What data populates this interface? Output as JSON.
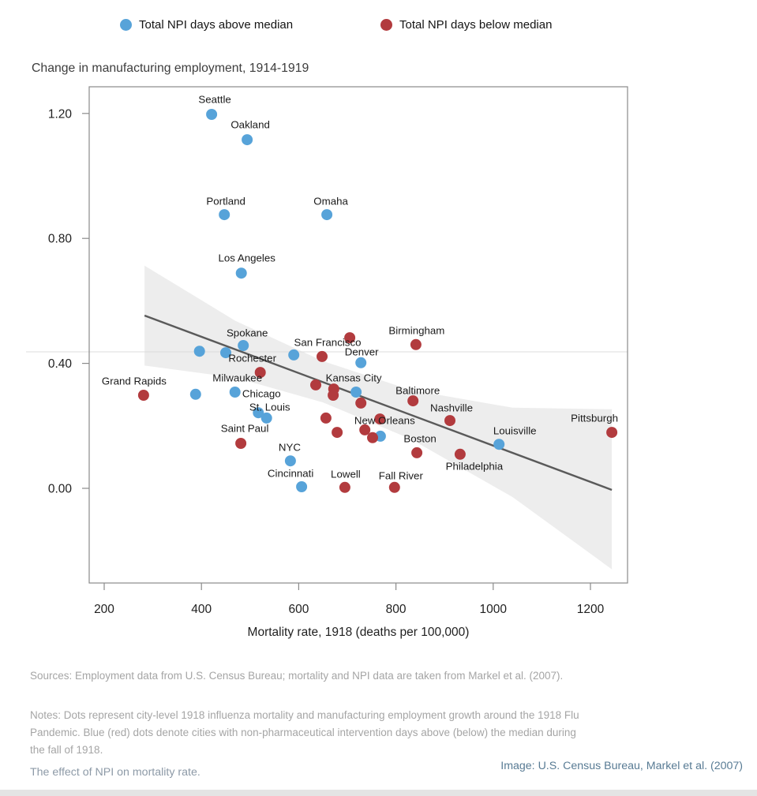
{
  "legend": {
    "above": "Total NPI days above median",
    "below": "Total NPI days below median"
  },
  "title": "Change in manufacturing employment, 1914-1919",
  "colors": {
    "above": "#57a3d9",
    "below": "#b23b3e",
    "trend": "#5a5a5a",
    "band": "rgba(130,130,130,0.14)",
    "refline": "#dcdcdc",
    "axis": "#8a8a8a",
    "tick_text": "#1f1f1f",
    "city_text": "#1a1a1a"
  },
  "chart_data": {
    "type": "scatter",
    "title": "Change in manufacturing employment, 1914-1919",
    "xlabel": "Mortality rate, 1918 (deaths per 100,000)",
    "ylabel": "Change in manufacturing employment, 1914-1919",
    "x_ticks": [
      200,
      400,
      600,
      800,
      1000,
      1200
    ],
    "y_ticks": [
      0.0,
      0.4,
      0.8,
      1.2
    ],
    "x_range": [
      169,
      1276
    ],
    "y_range": [
      -0.31,
      1.29
    ],
    "grid": "off",
    "legend_position": "top",
    "reference_line_y": 0.437,
    "trend_line": {
      "x1": 283,
      "y1": 0.553,
      "x2": 1244,
      "y2": -0.005
    },
    "confidence_band": {
      "top": [
        [
          283,
          0.713
        ],
        [
          470,
          0.536
        ],
        [
          650,
          0.407
        ],
        [
          830,
          0.315
        ],
        [
          1040,
          0.258
        ],
        [
          1244,
          0.253
        ]
      ],
      "bottom": [
        [
          283,
          0.393
        ],
        [
          470,
          0.354
        ],
        [
          650,
          0.275
        ],
        [
          830,
          0.158
        ],
        [
          1040,
          -0.028
        ],
        [
          1244,
          -0.259
        ]
      ]
    },
    "series": [
      {
        "name": "Total NPI days above median",
        "color_key": "above",
        "points": [
          {
            "city": "Seattle",
            "x": 421,
            "y": 1.197,
            "dx": 4,
            "dy": -19
          },
          {
            "city": "Oakland",
            "x": 494,
            "y": 1.116,
            "dx": 4,
            "dy": -19
          },
          {
            "city": "Portland",
            "x": 447,
            "y": 0.876,
            "dx": 2,
            "dy": -17
          },
          {
            "city": "Omaha",
            "x": 658,
            "y": 0.876,
            "dx": 5,
            "dy": -17
          },
          {
            "city": "Los Angeles",
            "x": 482,
            "y": 0.689,
            "dx": 7,
            "dy": -19
          },
          {
            "city": "Spokane",
            "x": 486,
            "y": 0.457,
            "dx": 5,
            "dy": -16
          },
          {
            "city": "",
            "x": 396,
            "y": 0.439
          },
          {
            "city": "",
            "x": 450,
            "y": 0.434
          },
          {
            "city": "",
            "x": 590,
            "y": 0.427
          },
          {
            "city": "Denver",
            "x": 728,
            "y": 0.402,
            "dx": 1,
            "dy": -14
          },
          {
            "city": "Milwaukee",
            "x": 469,
            "y": 0.308,
            "dx": 3,
            "dy": -18
          },
          {
            "city": "",
            "x": 388,
            "y": 0.301
          },
          {
            "city": "Kansas City",
            "x": 718,
            "y": 0.308,
            "dx": -3,
            "dy": -18
          },
          {
            "city": "Chicago",
            "x": 517,
            "y": 0.242,
            "dx": 4,
            "dy": -24
          },
          {
            "city": "St. Louis",
            "x": 534,
            "y": 0.225,
            "dx": 4,
            "dy": -14
          },
          {
            "city": "",
            "x": 768,
            "y": 0.167
          },
          {
            "city": "NYC",
            "x": 583,
            "y": 0.088,
            "dx": -1,
            "dy": -17
          },
          {
            "city": "Cincinnati",
            "x": 606,
            "y": 0.005,
            "dx": -14,
            "dy": -17
          },
          {
            "city": "Louisville",
            "x": 1012,
            "y": 0.141,
            "dx": 20,
            "dy": -17
          }
        ]
      },
      {
        "name": "Total NPI days below median",
        "color_key": "below",
        "points": [
          {
            "city": "San Francisco",
            "x": 648,
            "y": 0.422,
            "dx": 7,
            "dy": -18
          },
          {
            "city": "",
            "x": 705,
            "y": 0.482
          },
          {
            "city": "Birmingham",
            "x": 841,
            "y": 0.46,
            "dx": 1,
            "dy": -18
          },
          {
            "city": "Rochester",
            "x": 521,
            "y": 0.371,
            "dx": -10,
            "dy": -18
          },
          {
            "city": "Grand Rapids",
            "x": 281,
            "y": 0.298,
            "dx": -12,
            "dy": -18
          },
          {
            "city": "",
            "x": 635,
            "y": 0.331
          },
          {
            "city": "",
            "x": 672,
            "y": 0.318
          },
          {
            "city": "",
            "x": 671,
            "y": 0.298
          },
          {
            "city": "",
            "x": 728,
            "y": 0.273
          },
          {
            "city": "Baltimore",
            "x": 835,
            "y": 0.28,
            "dx": 6,
            "dy": -13
          },
          {
            "city": "Nashville",
            "x": 911,
            "y": 0.217,
            "dx": 2,
            "dy": -16
          },
          {
            "city": "New Orleans",
            "x": 767,
            "y": 0.222,
            "dx": 6,
            "dy": 2
          },
          {
            "city": "",
            "x": 656,
            "y": 0.225
          },
          {
            "city": "",
            "x": 679,
            "y": 0.179
          },
          {
            "city": "",
            "x": 736,
            "y": 0.187
          },
          {
            "city": "",
            "x": 752,
            "y": 0.162
          },
          {
            "city": "Saint Paul",
            "x": 481,
            "y": 0.144,
            "dx": 5,
            "dy": -19
          },
          {
            "city": "Boston",
            "x": 843,
            "y": 0.114,
            "dx": 4,
            "dy": -18
          },
          {
            "city": "Philadelphia",
            "x": 932,
            "y": 0.109,
            "dx": 18,
            "dy": 15
          },
          {
            "city": "Lowell",
            "x": 695,
            "y": 0.003,
            "dx": 1,
            "dy": -17
          },
          {
            "city": "Fall River",
            "x": 797,
            "y": 0.003,
            "dx": 8,
            "dy": -15
          },
          {
            "city": "Pittsburgh",
            "x": 1244,
            "y": 0.179,
            "dx": -22,
            "dy": -18
          }
        ]
      }
    ]
  },
  "footer": {
    "sources": "Sources: Employment data from U.S. Census Bureau; mortality and NPI data are taken from Markel et al. (2007).",
    "notes": "Notes: Dots represent city-level 1918 influenza mortality and manufacturing employment growth around the 1918 Flu Pandemic. Blue (red) dots denote cities with non-pharmaceutical intervention days above (below) the median during the fall of 1918."
  },
  "captions": {
    "left": "The effect of NPI on mortality rate.",
    "right": "Image: U.S. Census Bureau, Markel et al. (2007)"
  }
}
